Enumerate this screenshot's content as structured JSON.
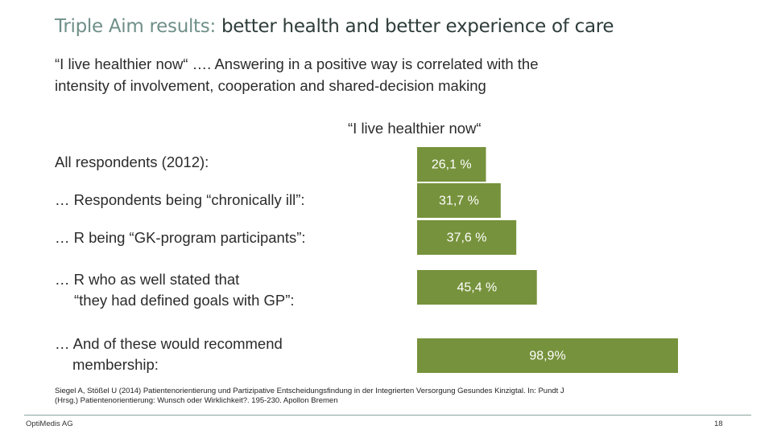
{
  "slide": {
    "title_lead": "Triple Aim results:",
    "title_rest": "better health and better experience of care",
    "subtitle_line1": "“I live healthier now“  …. Answering in a positive way is correlated with the",
    "subtitle_line2": "intensity of involvement, cooperation and shared-decision making",
    "footnote_line1": "Siegel A, Stößel U (2014) Patientenorientierung und Partizipative Entscheidungsfindung in der Integrierten Versorgung Gesundes Kinzigtal. In: Pundt J",
    "footnote_line2": "(Hrsg.) Patientenorientierung: Wunsch oder Wirklichkeit?. 195-230. Apollon Bremen",
    "company": "OptiMedis AG",
    "page_number": "18"
  },
  "rows": {
    "r0": {
      "line1": "All respondents (2012):"
    },
    "r1": {
      "line1": "… Respondents being “chronically ill”:"
    },
    "r2": {
      "line1": "… R being “GK-program participants”:"
    },
    "r3": {
      "line1": "… R who as well stated that",
      "line2": "“they had defined goals with GP”:"
    },
    "r4": {
      "line1": "… And of these would recommend",
      "line2": "membership:"
    }
  },
  "chart_data": {
    "type": "bar",
    "orientation": "horizontal",
    "title": "“I live healthier now“",
    "categories": [
      "All respondents (2012):",
      "… Respondents being “chronically ill”:",
      "… R being “GK-program participants”:",
      "… R who as well stated that “they had defined goals with GP”:",
      "… And of these would recommend membership:"
    ],
    "values": [
      26.1,
      31.7,
      37.6,
      45.4,
      98.9
    ],
    "data_labels": [
      "26,1 %",
      "31,7 %",
      "37,6 %",
      "45,4 %",
      "98,9%"
    ],
    "unit": "%",
    "color": "#76923c",
    "grid": false,
    "axes_visible": false
  }
}
